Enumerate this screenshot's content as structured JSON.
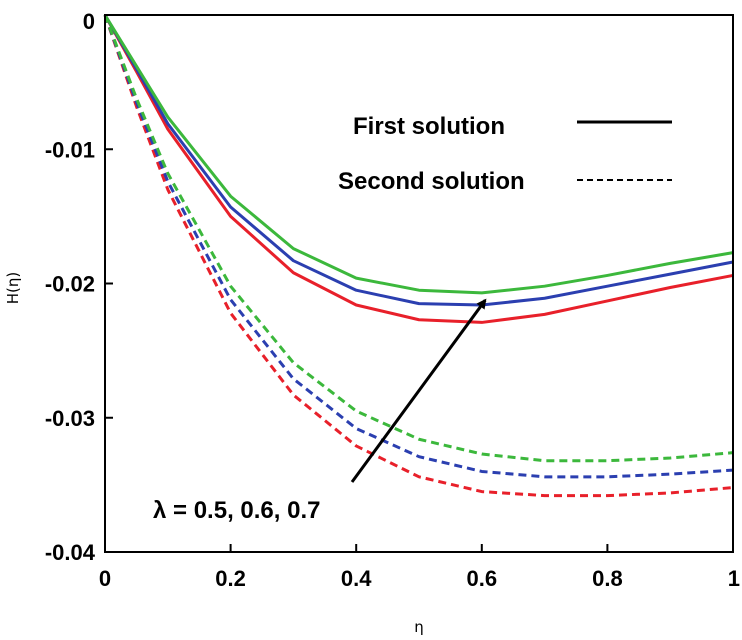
{
  "chart_data": {
    "type": "line",
    "title": "",
    "xlabel": "η",
    "ylabel": "H(η)",
    "xlim": [
      0,
      1
    ],
    "ylim": [
      -0.04,
      0
    ],
    "xticks": [
      0,
      0.2,
      0.4,
      0.6,
      0.8,
      1
    ],
    "xtick_labels": [
      "0",
      "0.2",
      "0.4",
      "0.6",
      "0.8",
      "1"
    ],
    "yticks": [
      0,
      -0.01,
      -0.02,
      -0.03,
      -0.04
    ],
    "ytick_labels": [
      "0",
      "-0.01",
      "-0.02",
      "-0.03",
      "-0.04"
    ],
    "grid": false,
    "legend": [
      {
        "label": "First solution",
        "style": "solid"
      },
      {
        "label": "Second solution",
        "style": "dashed"
      }
    ],
    "annotation": {
      "text": "λ = 0.5, 0.6, 0.7",
      "arrow_from": [
        0.4,
        -0.025
      ],
      "arrow_to": [
        0.615,
        -0.0202
      ]
    },
    "series": [
      {
        "name": "First solution, λ = 0.5",
        "style": "solid",
        "color": "#e8202a",
        "x": [
          0,
          0.05,
          0.1,
          0.2,
          0.3,
          0.4,
          0.5,
          0.6,
          0.7,
          0.8,
          0.9,
          1
        ],
        "y": [
          0,
          -0.0042,
          -0.0085,
          -0.015,
          -0.0192,
          -0.0216,
          -0.0227,
          -0.0229,
          -0.0223,
          -0.0213,
          -0.0203,
          -0.0194
        ]
      },
      {
        "name": "First solution, λ = 0.6",
        "style": "solid",
        "color": "#2b3fb0",
        "x": [
          0,
          0.05,
          0.1,
          0.2,
          0.3,
          0.4,
          0.5,
          0.6,
          0.7,
          0.8,
          0.9,
          1
        ],
        "y": [
          0,
          -0.004,
          -0.0081,
          -0.0143,
          -0.0183,
          -0.0205,
          -0.0215,
          -0.0216,
          -0.0211,
          -0.0202,
          -0.0193,
          -0.0184
        ]
      },
      {
        "name": "First solution, λ = 0.7",
        "style": "solid",
        "color": "#3cb83c",
        "x": [
          0,
          0.05,
          0.1,
          0.2,
          0.3,
          0.4,
          0.5,
          0.6,
          0.7,
          0.8,
          0.9,
          1
        ],
        "y": [
          0,
          -0.0038,
          -0.0076,
          -0.0135,
          -0.0174,
          -0.0196,
          -0.0205,
          -0.0207,
          -0.0202,
          -0.0194,
          -0.0185,
          -0.0177
        ]
      },
      {
        "name": "Second solution, λ = 0.5",
        "style": "dashed",
        "color": "#e8202a",
        "x": [
          0,
          0.05,
          0.1,
          0.2,
          0.3,
          0.4,
          0.5,
          0.6,
          0.7,
          0.8,
          0.9,
          1
        ],
        "y": [
          0,
          -0.0068,
          -0.013,
          -0.0222,
          -0.0283,
          -0.0321,
          -0.0344,
          -0.0355,
          -0.0358,
          -0.0358,
          -0.0356,
          -0.0352
        ]
      },
      {
        "name": "Second solution, λ = 0.6",
        "style": "dashed",
        "color": "#2b3fb0",
        "x": [
          0,
          0.05,
          0.1,
          0.2,
          0.3,
          0.4,
          0.5,
          0.6,
          0.7,
          0.8,
          0.9,
          1
        ],
        "y": [
          0,
          -0.0065,
          -0.0124,
          -0.0212,
          -0.0271,
          -0.0308,
          -0.0329,
          -0.034,
          -0.0344,
          -0.0344,
          -0.0342,
          -0.0339
        ]
      },
      {
        "name": "Second solution, λ = 0.7",
        "style": "dashed",
        "color": "#3cb83c",
        "x": [
          0,
          0.05,
          0.1,
          0.2,
          0.3,
          0.4,
          0.5,
          0.6,
          0.7,
          0.8,
          0.9,
          1
        ],
        "y": [
          0,
          -0.0062,
          -0.0118,
          -0.0202,
          -0.0259,
          -0.0295,
          -0.0316,
          -0.0327,
          -0.0332,
          -0.0332,
          -0.033,
          -0.0326
        ]
      }
    ]
  }
}
